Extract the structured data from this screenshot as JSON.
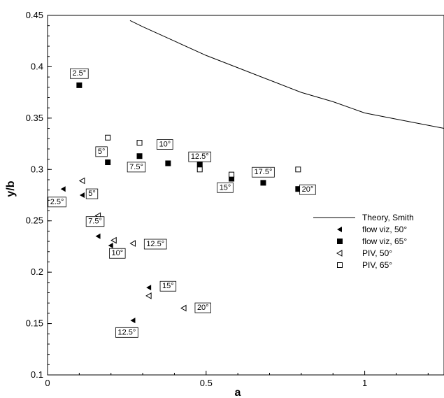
{
  "chart_data": {
    "type": "scatter",
    "xlabel": "a",
    "ylabel": "y/b",
    "xlim": [
      0,
      1.25
    ],
    "ylim": [
      0.1,
      0.45
    ],
    "x_ticks": [
      0,
      0.5,
      1
    ],
    "x_tick_labels": [
      "0",
      "0.5",
      "1"
    ],
    "y_ticks": [
      0.1,
      0.15,
      0.2,
      0.25,
      0.3,
      0.35,
      0.4,
      0.45
    ],
    "y_tick_labels": [
      "0.1",
      "0.15",
      "0.2",
      "0.25",
      "0.3",
      "0.35",
      "0.4",
      "0.45"
    ],
    "grid": false,
    "legend_position": "right",
    "series": [
      {
        "name": "Theory, Smith",
        "kind": "line",
        "x": [
          0.26,
          0.3,
          0.4,
          0.5,
          0.6,
          0.7,
          0.8,
          0.9,
          1.0,
          1.1,
          1.2,
          1.25
        ],
        "y": [
          0.445,
          0.439,
          0.425,
          0.411,
          0.399,
          0.387,
          0.375,
          0.366,
          0.355,
          0.349,
          0.343,
          0.34
        ]
      },
      {
        "name": "flow viz, 50°",
        "marker": "left-triangle-filled",
        "x": [
          0.05,
          0.11,
          0.16,
          0.2,
          0.27,
          0.32
        ],
        "y": [
          0.281,
          0.275,
          0.235,
          0.226,
          0.153,
          0.185
        ]
      },
      {
        "name": "flow viz, 65°",
        "marker": "square-filled",
        "x": [
          0.1,
          0.19,
          0.29,
          0.38,
          0.48,
          0.58,
          0.68,
          0.79
        ],
        "y": [
          0.382,
          0.307,
          0.313,
          0.306,
          0.305,
          0.291,
          0.287,
          0.281
        ]
      },
      {
        "name": "PIV, 50°",
        "marker": "left-triangle-open",
        "x": [
          0.11,
          0.16,
          0.21,
          0.27,
          0.32,
          0.43
        ],
        "y": [
          0.289,
          0.255,
          0.231,
          0.228,
          0.177,
          0.165
        ]
      },
      {
        "name": "PIV, 65°",
        "marker": "square-open",
        "x": [
          0.19,
          0.29,
          0.38,
          0.48,
          0.58,
          0.79
        ],
        "y": [
          0.331,
          0.326,
          0.325,
          0.3,
          0.295,
          0.3
        ]
      }
    ],
    "annotations": [
      {
        "text": "2.5°",
        "x": 0.1,
        "y": 0.394
      },
      {
        "text": "5°",
        "x": 0.17,
        "y": 0.318
      },
      {
        "text": "7.5°",
        "x": 0.28,
        "y": 0.303
      },
      {
        "text": "10°",
        "x": 0.37,
        "y": 0.325
      },
      {
        "text": "12.5°",
        "x": 0.48,
        "y": 0.313
      },
      {
        "text": "15°",
        "x": 0.56,
        "y": 0.283
      },
      {
        "text": "17.5°",
        "x": 0.68,
        "y": 0.298
      },
      {
        "text": "20°",
        "x": 0.82,
        "y": 0.281
      },
      {
        "text": "5°",
        "x": 0.14,
        "y": 0.277
      },
      {
        "text": "2.5°",
        "x": 0.03,
        "y": 0.269
      },
      {
        "text": "7.5°",
        "x": 0.15,
        "y": 0.25
      },
      {
        "text": "12.5°",
        "x": 0.34,
        "y": 0.228
      },
      {
        "text": "10°",
        "x": 0.22,
        "y": 0.219
      },
      {
        "text": "15°",
        "x": 0.38,
        "y": 0.187
      },
      {
        "text": "20°",
        "x": 0.49,
        "y": 0.166
      },
      {
        "text": "12.5°",
        "x": 0.25,
        "y": 0.142
      }
    ]
  },
  "colors": {
    "foreground": "#000000",
    "background": "#ffffff"
  }
}
